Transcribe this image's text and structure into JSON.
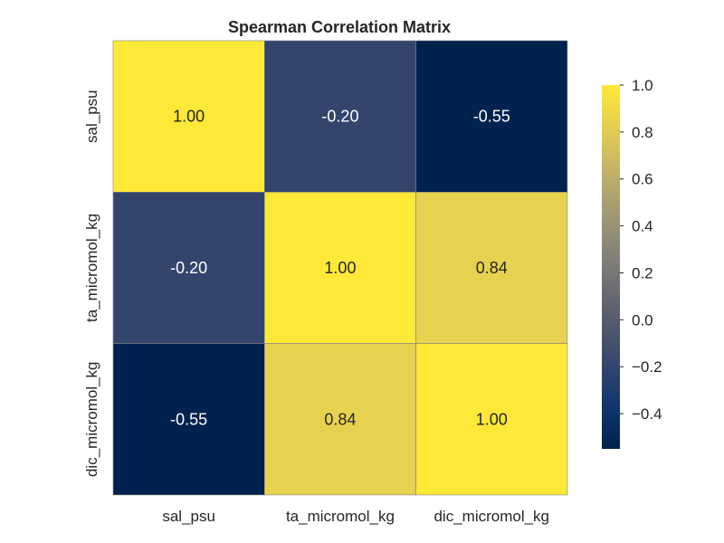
{
  "chart_data": {
    "type": "heatmap",
    "title": "Spearman Correlation Matrix",
    "x_labels": [
      "sal_psu",
      "ta_micromol_kg",
      "dic_micromol_kg"
    ],
    "y_labels": [
      "sal_psu",
      "ta_micromol_kg",
      "dic_micromol_kg"
    ],
    "values": [
      [
        1.0,
        -0.2,
        -0.55
      ],
      [
        -0.2,
        1.0,
        0.84
      ],
      [
        -0.55,
        0.84,
        1.0
      ]
    ],
    "value_labels": [
      [
        "1.00",
        "-0.20",
        "-0.55"
      ],
      [
        "-0.20",
        "1.00",
        "0.84"
      ],
      [
        "-0.55",
        "0.84",
        "1.00"
      ]
    ],
    "colormap": "cividis",
    "vmin": -0.55,
    "vmax": 1.0,
    "colorbar": {
      "ticks": [
        1.0,
        0.8,
        0.6,
        0.4,
        0.2,
        0.0,
        -0.2,
        -0.4
      ],
      "tick_labels": [
        "1.0",
        "0.8",
        "0.6",
        "0.4",
        "0.2",
        "0.0",
        "−0.2",
        "−0.4"
      ]
    },
    "colors": {
      "low": "#00224e",
      "mid": "#7c7b78",
      "high": "#fee838",
      "grid": "#808080"
    }
  }
}
